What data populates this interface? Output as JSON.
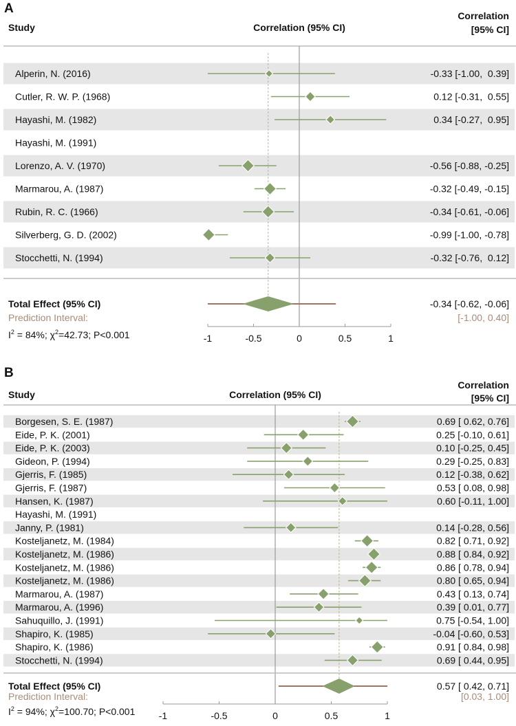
{
  "colors": {
    "marker": "#88a06b",
    "band": "#e6e6e6",
    "prediction_line": "#a8705e",
    "prediction_text": "#a98b78",
    "axis": "#999999",
    "text": "#111111"
  },
  "chart_data": [
    {
      "type": "forest",
      "panel_label": "A",
      "col_study": "Study",
      "col_plot": "Correlation (95% CI)",
      "col_value_line1": "Correlation",
      "col_value_line2": "[95% CI]",
      "xlim": [
        -1,
        1
      ],
      "xticks": [
        "-1",
        "-0.5",
        "0",
        "0.5",
        "1"
      ],
      "xtick_values": [
        -1,
        -0.5,
        0,
        0.5,
        1
      ],
      "studies": [
        {
          "name": "Alperin, N. (2016)",
          "est": -0.33,
          "lo": -1.0,
          "hi": 0.39,
          "weight": 2,
          "text": "-0.33 [-1.00,  0.39]"
        },
        {
          "name": "Cutler, R. W. P. (1968)",
          "est": 0.12,
          "lo": -0.31,
          "hi": 0.55,
          "weight": 3,
          "text": "0.12 [-0.31,  0.55]"
        },
        {
          "name": "Hayashi, M. (1982)",
          "est": 0.34,
          "lo": -0.27,
          "hi": 0.95,
          "weight": 2.5,
          "text": "0.34 [-0.27,  0.95]"
        },
        {
          "name": "Hayashi, M. (1991)",
          "est": null,
          "lo": null,
          "hi": null,
          "weight": 0,
          "text": ""
        },
        {
          "name": "Lorenzo, A. V. (1970)",
          "est": -0.56,
          "lo": -0.88,
          "hi": -0.25,
          "weight": 4,
          "text": "-0.56 [-0.88, -0.25]"
        },
        {
          "name": "Marmarou, A. (1987)",
          "est": -0.32,
          "lo": -0.49,
          "hi": -0.15,
          "weight": 4,
          "text": "-0.32 [-0.49, -0.15]"
        },
        {
          "name": "Rubin, R. C. (1966)",
          "est": -0.34,
          "lo": -0.61,
          "hi": -0.06,
          "weight": 4,
          "text": "-0.34 [-0.61, -0.06]"
        },
        {
          "name": "Silverberg, G. D. (2002)",
          "est": -0.99,
          "lo": -1.0,
          "hi": -0.78,
          "weight": 4,
          "text": "-0.99 [-1.00, -0.78]"
        },
        {
          "name": "Stocchetti, N. (1994)",
          "est": -0.32,
          "lo": -0.76,
          "hi": 0.12,
          "weight": 3,
          "text": "-0.32 [-0.76,  0.12]"
        }
      ],
      "total": {
        "label": "Total Effect (95% CI)",
        "est": -0.34,
        "lo": -0.62,
        "hi": -0.06,
        "text": "-0.34 [-0.62, -0.06]"
      },
      "prediction": {
        "label": "Prediction Interval:",
        "lo": -1.0,
        "hi": 0.4,
        "text": "[-1.00, 0.40]"
      },
      "heterogeneity": {
        "i2": "84%",
        "chi2": "42.73",
        "p": "P<0.001"
      }
    },
    {
      "type": "forest",
      "panel_label": "B",
      "col_study": "Study",
      "col_plot": "Correlation (95% CI)",
      "col_value_line1": "Correlation",
      "col_value_line2": "[95% CI]",
      "xlim": [
        -1,
        1
      ],
      "xticks": [
        "-1",
        "-0.5",
        "0",
        "0.5",
        "1"
      ],
      "xtick_values": [
        -1,
        -0.5,
        0,
        0.5,
        1
      ],
      "studies": [
        {
          "name": "Borgesen, S. E. (1987)",
          "est": 0.69,
          "lo": 0.62,
          "hi": 0.76,
          "weight": 4,
          "text": "0.69 [ 0.62, 0.76]"
        },
        {
          "name": "Eide, P. K. (2001)",
          "est": 0.25,
          "lo": -0.1,
          "hi": 0.61,
          "weight": 3.5,
          "text": "0.25 [-0.10, 0.61]"
        },
        {
          "name": "Eide, P. K. (2003)",
          "est": 0.1,
          "lo": -0.25,
          "hi": 0.45,
          "weight": 3.5,
          "text": "0.10 [-0.25, 0.45]"
        },
        {
          "name": "Gideon, P. (1994)",
          "est": 0.29,
          "lo": -0.25,
          "hi": 0.83,
          "weight": 3,
          "text": "0.29 [-0.25, 0.83]"
        },
        {
          "name": "Gjerris, F. (1985)",
          "est": 0.12,
          "lo": -0.38,
          "hi": 0.62,
          "weight": 3,
          "text": "0.12 [-0.38, 0.62]"
        },
        {
          "name": "Gjerris, F. (1987)",
          "est": 0.53,
          "lo": 0.08,
          "hi": 0.98,
          "weight": 3,
          "text": "0.53 [ 0.08, 0.98]"
        },
        {
          "name": "Hansen, K. (1987)",
          "est": 0.6,
          "lo": -0.11,
          "hi": 1.0,
          "weight": 2.5,
          "text": "0.60 [-0.11, 1.00]"
        },
        {
          "name": "Hayashi, M. (1991)",
          "est": null,
          "lo": null,
          "hi": null,
          "weight": 0,
          "text": ""
        },
        {
          "name": "Janny, P. (1981)",
          "est": 0.14,
          "lo": -0.28,
          "hi": 0.56,
          "weight": 3,
          "text": "0.14 [-0.28, 0.56]"
        },
        {
          "name": "Kosteljanetz, M. (1984)",
          "est": 0.82,
          "lo": 0.71,
          "hi": 0.92,
          "weight": 4,
          "text": "0.82 [ 0.71, 0.92]"
        },
        {
          "name": "Kosteljanetz, M. (1986)",
          "est": 0.88,
          "lo": 0.84,
          "hi": 0.92,
          "weight": 4,
          "text": "0.88 [ 0.84, 0.92]"
        },
        {
          "name": "Kosteljanetz, M. (1986)",
          "est": 0.86,
          "lo": 0.78,
          "hi": 0.94,
          "weight": 4,
          "text": "0.86 [ 0.78, 0.94]"
        },
        {
          "name": "Kosteljanetz, M. (1986)",
          "est": 0.8,
          "lo": 0.65,
          "hi": 0.94,
          "weight": 4,
          "text": "0.80 [ 0.65, 0.94]"
        },
        {
          "name": "Marmarou, A. (1987)",
          "est": 0.43,
          "lo": 0.13,
          "hi": 0.74,
          "weight": 3.5,
          "text": "0.43 [ 0.13, 0.74]"
        },
        {
          "name": "Marmarou, A. (1996)",
          "est": 0.39,
          "lo": 0.01,
          "hi": 0.77,
          "weight": 3,
          "text": "0.39 [ 0.01, 0.77]"
        },
        {
          "name": "Sahuquillo, J. (1991)",
          "est": 0.75,
          "lo": -0.54,
          "hi": 1.0,
          "weight": 2,
          "text": "0.75 [-0.54, 1.00]"
        },
        {
          "name": "Shapiro, K. (1985)",
          "est": -0.04,
          "lo": -0.6,
          "hi": 0.53,
          "weight": 3,
          "text": "-0.04 [-0.60, 0.53]"
        },
        {
          "name": "Shapiro, K. (1986)",
          "est": 0.91,
          "lo": 0.84,
          "hi": 0.98,
          "weight": 4,
          "text": "0.91 [ 0.84, 0.98]"
        },
        {
          "name": "Stocchetti, N. (1994)",
          "est": 0.69,
          "lo": 0.44,
          "hi": 0.95,
          "weight": 3.5,
          "text": "0.69 [ 0.44, 0.95]"
        }
      ],
      "total": {
        "label": "Total Effect (95% CI)",
        "est": 0.57,
        "lo": 0.42,
        "hi": 0.71,
        "text": "0.57 [ 0.42, 0.71]"
      },
      "prediction": {
        "label": "Prediction Interval:",
        "lo": 0.03,
        "hi": 1.0,
        "text": "[0.03, 1.00]"
      },
      "heterogeneity": {
        "i2": "94%",
        "chi2": "100.70",
        "p": "P<0.001"
      }
    }
  ]
}
